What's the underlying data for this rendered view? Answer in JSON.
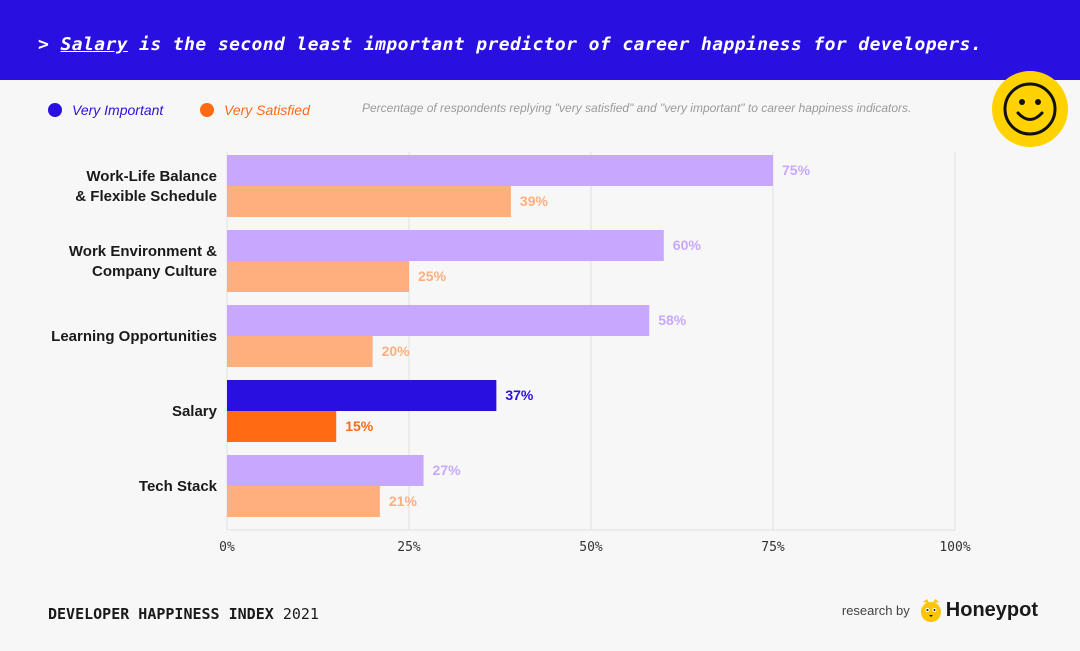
{
  "header": {
    "prefix": ">",
    "highlight": "Salary",
    "headline": "is the second least important predictor of career happiness for developers."
  },
  "legend": {
    "important_label": "Very Important",
    "satisfied_label": "Very Satisfied",
    "caption": "Percentage of respondents replying \"very satisfied\" and \"very important\" to career happiness indicators."
  },
  "colors": {
    "banner": "#2a10e0",
    "important_dark": "#2a10e0",
    "important_light": "#c8a8ff",
    "satisfied_dark": "#ff6a13",
    "satisfied_light": "#ffae7d",
    "smiley": "#ffd200"
  },
  "chart_data": {
    "type": "bar",
    "orientation": "horizontal",
    "title": "Salary is the second least important predictor of career happiness for developers.",
    "categories": [
      [
        "Work-Life Balance",
        "& Flexible Schedule"
      ],
      [
        "Work Environment &",
        "Company Culture"
      ],
      [
        "Learning Opportunities"
      ],
      [
        "Salary"
      ],
      [
        "Tech Stack"
      ]
    ],
    "series": [
      {
        "name": "Very Important",
        "values": [
          75,
          60,
          58,
          37,
          27
        ]
      },
      {
        "name": "Very Satisfied",
        "values": [
          39,
          25,
          20,
          15,
          21
        ]
      }
    ],
    "value_labels": {
      "Very Important": [
        "75%",
        "60%",
        "58%",
        "37%",
        "27%"
      ],
      "Very Satisfied": [
        "39%",
        "25%",
        "20%",
        "15%",
        "21%"
      ]
    },
    "highlight_category": "Salary",
    "xlim": [
      0,
      100
    ],
    "xticks": [
      0,
      25,
      50,
      75,
      100
    ],
    "xtick_labels": [
      "0%",
      "25%",
      "50%",
      "75%",
      "100%"
    ],
    "grid": true
  },
  "footer": {
    "index_bold": "DEVELOPER HAPPINESS INDEX",
    "year": "2021",
    "research_by": "research by",
    "brand": "Honeypot"
  }
}
